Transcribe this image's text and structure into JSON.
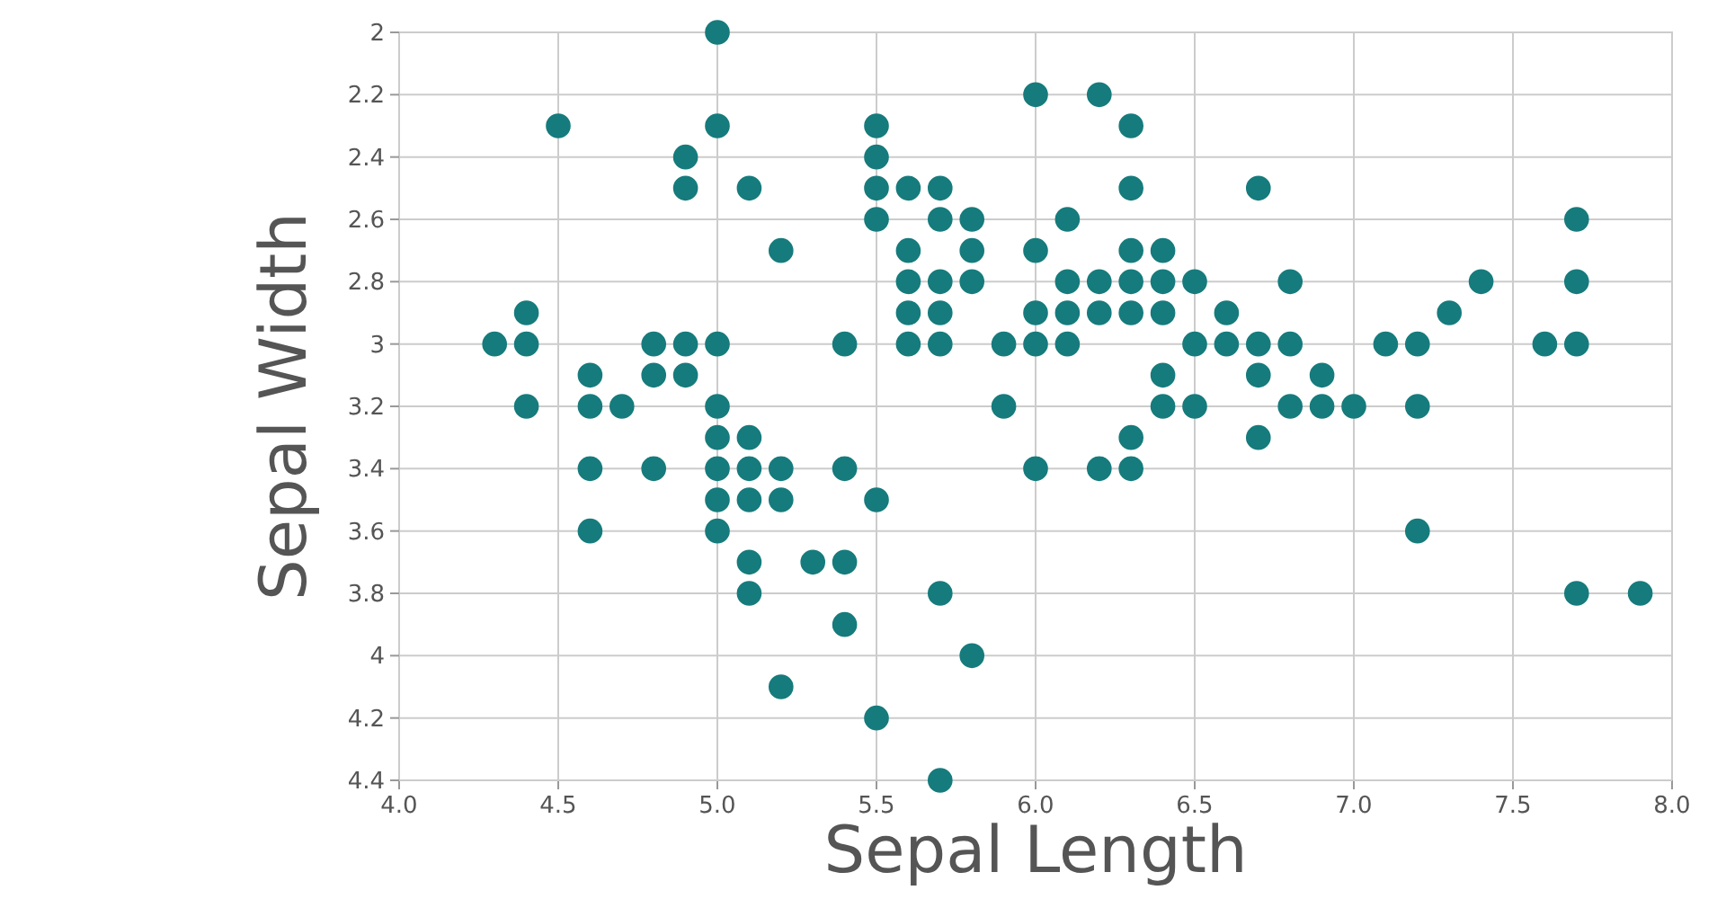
{
  "chart_data": {
    "type": "scatter",
    "xlabel": "Sepal Length",
    "ylabel": "Sepal Width",
    "color": "#167b7c",
    "marker": "circle",
    "grid": true,
    "xlim": [
      4,
      8
    ],
    "xticks": [
      {
        "value": 4,
        "label": "4.0"
      },
      {
        "value": 4.5,
        "label": "4.5"
      },
      {
        "value": 5,
        "label": "5.0"
      },
      {
        "value": 5.5,
        "label": "5.5"
      },
      {
        "value": 6,
        "label": "6.0"
      },
      {
        "value": 6.5,
        "label": "6.5"
      },
      {
        "value": 7,
        "label": "7.0"
      },
      {
        "value": 7.5,
        "label": "7.5"
      },
      {
        "value": 8,
        "label": "8.0"
      }
    ],
    "ylim": [
      4.4,
      2
    ],
    "yticks": [
      2,
      2.2,
      2.4,
      2.6,
      2.8,
      3,
      3.2,
      3.4,
      3.6,
      3.8,
      4,
      4.2,
      4.4
    ],
    "x": [
      4.3,
      4.4,
      4.4,
      4.4,
      4.5,
      4.6,
      4.6,
      4.6,
      4.6,
      4.7,
      4.8,
      4.8,
      4.8,
      4.9,
      4.9,
      4.9,
      4.9,
      5.0,
      5.0,
      5.0,
      5.0,
      5.0,
      5.0,
      5.0,
      5.0,
      5.1,
      5.1,
      5.1,
      5.1,
      5.1,
      5.1,
      5.2,
      5.2,
      5.2,
      5.2,
      5.3,
      5.4,
      5.4,
      5.4,
      5.4,
      5.5,
      5.5,
      5.5,
      5.5,
      5.5,
      5.5,
      5.6,
      5.6,
      5.6,
      5.6,
      5.6,
      5.7,
      5.7,
      5.7,
      5.7,
      5.7,
      5.7,
      5.7,
      5.8,
      5.8,
      5.8,
      5.8,
      5.9,
      5.9,
      6.0,
      6.0,
      6.0,
      6.0,
      6.0,
      6.1,
      6.1,
      6.1,
      6.1,
      6.2,
      6.2,
      6.2,
      6.2,
      6.3,
      6.3,
      6.3,
      6.3,
      6.3,
      6.3,
      6.3,
      6.4,
      6.4,
      6.4,
      6.4,
      6.4,
      6.5,
      6.5,
      6.5,
      6.6,
      6.6,
      6.7,
      6.7,
      6.7,
      6.7,
      6.8,
      6.8,
      6.8,
      6.9,
      6.9,
      7.0,
      7.1,
      7.2,
      7.2,
      7.2,
      7.3,
      7.4,
      7.6,
      7.7,
      7.7,
      7.7,
      7.7,
      7.9
    ],
    "values": [
      3.0,
      2.9,
      3.0,
      3.2,
      2.3,
      3.1,
      3.4,
      3.6,
      3.2,
      3.2,
      3.4,
      3.0,
      3.1,
      3.0,
      3.1,
      2.4,
      2.5,
      3.6,
      3.4,
      3.0,
      3.2,
      3.5,
      3.3,
      2.0,
      2.3,
      3.5,
      3.8,
      3.7,
      3.3,
      3.4,
      2.5,
      3.5,
      3.4,
      4.1,
      2.7,
      3.7,
      3.9,
      3.7,
      3.4,
      3.0,
      4.2,
      3.5,
      2.3,
      2.4,
      2.5,
      2.6,
      2.9,
      3.0,
      2.5,
      2.7,
      2.8,
      4.4,
      3.8,
      2.8,
      2.6,
      3.0,
      2.9,
      2.5,
      4.0,
      2.7,
      2.6,
      2.8,
      3.0,
      3.2,
      2.2,
      2.9,
      2.7,
      3.4,
      3.0,
      2.9,
      2.8,
      3.0,
      2.6,
      2.2,
      2.9,
      2.8,
      3.4,
      3.3,
      2.5,
      2.3,
      2.9,
      2.7,
      2.8,
      3.4,
      3.2,
      2.9,
      2.7,
      2.8,
      3.1,
      2.8,
      3.0,
      3.2,
      2.9,
      3.0,
      3.1,
      3.0,
      2.5,
      3.3,
      2.8,
      3.0,
      3.2,
      3.1,
      3.2,
      3.2,
      3.0,
      3.6,
      3.2,
      3.0,
      2.9,
      2.8,
      3.0,
      3.8,
      2.6,
      2.8,
      3.0,
      3.8
    ]
  }
}
